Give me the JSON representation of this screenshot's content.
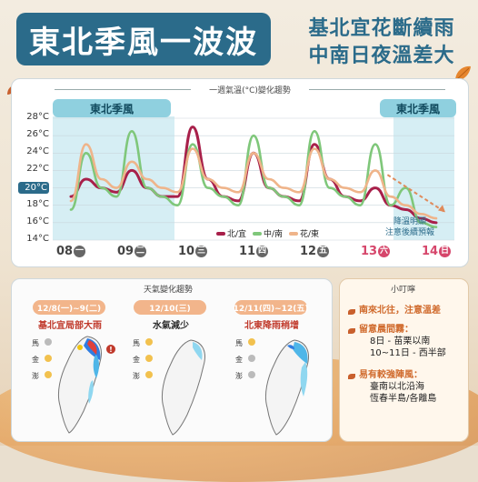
{
  "header": {
    "title": "東北季風一波波",
    "subtitle_line1": "基北宜花斷續雨",
    "subtitle_line2": "中南日夜溫差大"
  },
  "chart": {
    "title": "一週氣溫(°C)變化趨勢",
    "tag_left": "東北季風",
    "tag_right": "東北季風",
    "note_line1": "降溫明顯",
    "note_line2": "注意後續預報",
    "highlight_tick": "20°C"
  },
  "chart_data": {
    "type": "line",
    "title": "一週氣溫(°C)變化趨勢",
    "ylim": [
      14,
      28
    ],
    "yticks": [
      "28°C",
      "26°C",
      "24°C",
      "22°C",
      "20°C",
      "18°C",
      "16°C",
      "14°C"
    ],
    "categories": [
      "08",
      "09",
      "10",
      "11",
      "12",
      "13",
      "14"
    ],
    "weekday_marks": [
      "一",
      "二",
      "三",
      "四",
      "五",
      "六",
      "日"
    ],
    "weekend_red": [
      false,
      false,
      false,
      false,
      false,
      true,
      true
    ],
    "x": [
      8.0,
      8.25,
      8.5,
      8.75,
      9.0,
      9.25,
      9.5,
      9.75,
      10.0,
      10.25,
      10.5,
      10.75,
      11.0,
      11.25,
      11.5,
      11.75,
      12.0,
      12.25,
      12.5,
      12.75,
      13.0,
      13.25,
      13.5,
      13.75,
      14.0
    ],
    "series": [
      {
        "name": "北/宜",
        "color": "#a8204a",
        "values": [
          19,
          21,
          20,
          19.5,
          22,
          20,
          19,
          19,
          27,
          21,
          19,
          18.5,
          24,
          20,
          19,
          18.5,
          25,
          21,
          19,
          18.5,
          20,
          18,
          17.5,
          16.5,
          16
        ]
      },
      {
        "name": "中/南",
        "color": "#7fc77a",
        "values": [
          17.5,
          24,
          20,
          19,
          26.5,
          20,
          19,
          18,
          25,
          20,
          19,
          18,
          26,
          20,
          19,
          18,
          26.5,
          20,
          19,
          18,
          25,
          18,
          20,
          16,
          15.5
        ]
      },
      {
        "name": "花/東",
        "color": "#efb48a",
        "values": [
          18.5,
          25,
          21,
          20,
          23,
          21,
          20,
          19.5,
          24.5,
          21,
          20,
          19.5,
          24,
          21,
          20,
          19.5,
          24.5,
          21,
          20,
          19.5,
          22,
          19,
          18,
          17,
          16.5
        ]
      }
    ],
    "forecast_trend": "down",
    "grid": true
  },
  "weather_section": {
    "title": "天氣變化趨勢",
    "days": [
      {
        "date": "12/8(一)~9(二)",
        "desc": "基北宜局部大雨",
        "desc_color": "#c0392b"
      },
      {
        "date": "12/10(三)",
        "desc": "水氣減少",
        "desc_color": "#2c2c2c"
      },
      {
        "date": "12/11(四)~12(五)",
        "desc": "北東降雨稍增",
        "desc_color": "#c0392b"
      }
    ],
    "map_labels": [
      "馬",
      "金",
      "澎"
    ]
  },
  "tips": {
    "title": "小叮嚀",
    "items": [
      {
        "head": "南來北往，注意溫差",
        "lines": []
      },
      {
        "head": "留意晨間霧：",
        "lines": [
          "8日 - 苗栗以南",
          "10~11日 - 西半部"
        ]
      },
      {
        "head": "易有較強陣風：",
        "lines": [
          "臺南以北沿海",
          "恆春半島/各離島"
        ]
      }
    ]
  }
}
